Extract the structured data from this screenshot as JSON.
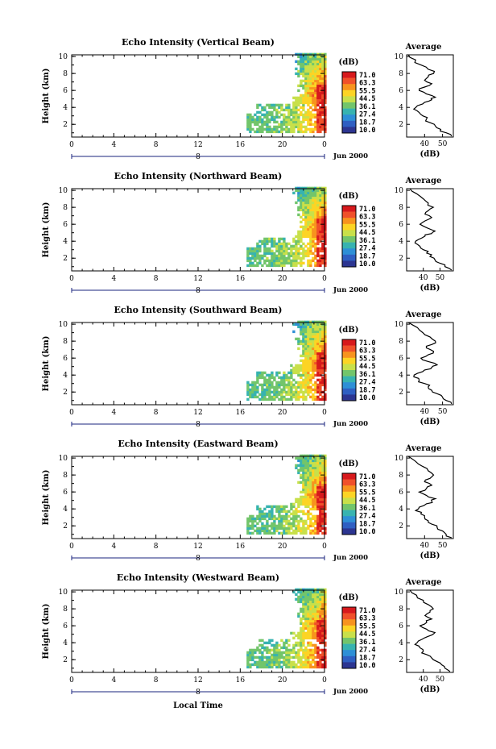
{
  "figure": {
    "xlabel_bottom": "Local Time",
    "date_label": "Jun 2000",
    "day_marker": "8",
    "colorbar_unit": "(dB)",
    "colorbar_ticks": [
      "71.0",
      "63.3",
      "55.5",
      "44.5",
      "36.1",
      "27.4",
      "18.7",
      "10.0"
    ],
    "colorbar_colors": [
      "#d7191c",
      "#f0502a",
      "#f7931e",
      "#fcd424",
      "#c8e04a",
      "#72c56b",
      "#37b3b0",
      "#2e8fd6",
      "#2f5fc2",
      "#2c3591"
    ],
    "avg_title": "Average",
    "avg_xlabel": "(dB)",
    "avg_xticks": [
      "40",
      "50"
    ]
  },
  "chart_data": [
    {
      "type": "heatmap",
      "title": "Echo Intensity (Vertical Beam)",
      "ylabel": "Height (km)",
      "xlim": [
        0,
        24
      ],
      "ylim": [
        0.5,
        10.2
      ],
      "xticks": [
        "0",
        "4",
        "8",
        "12",
        "16",
        "20",
        "0"
      ],
      "yticks": [
        "2",
        "4",
        "6",
        "8",
        "10"
      ],
      "grid": false,
      "note": "echo present roughly from 16.5 h to 24 h local time, strongest (>60 dB) near 23 h below 6 km"
    },
    {
      "type": "heatmap",
      "title": "Echo Intensity (Northward Beam)",
      "ylabel": "Height (km)",
      "xlim": [
        0,
        24
      ],
      "ylim": [
        0.5,
        10.2
      ],
      "xticks": [
        "0",
        "4",
        "8",
        "12",
        "16",
        "20",
        "0"
      ],
      "yticks": [
        "2",
        "4",
        "6",
        "8",
        "10"
      ],
      "grid": false
    },
    {
      "type": "heatmap",
      "title": "Echo Intensity (Southward Beam)",
      "ylabel": "Height (km)",
      "xlim": [
        0,
        24
      ],
      "ylim": [
        0.5,
        10.2
      ],
      "xticks": [
        "0",
        "4",
        "8",
        "12",
        "16",
        "20",
        "0"
      ],
      "yticks": [
        "2",
        "4",
        "6",
        "8",
        "10"
      ],
      "grid": false
    },
    {
      "type": "heatmap",
      "title": "Echo Intensity (Eastward Beam)",
      "ylabel": "Height (km)",
      "xlim": [
        0,
        24
      ],
      "ylim": [
        0.5,
        10.2
      ],
      "xticks": [
        "0",
        "4",
        "8",
        "12",
        "16",
        "20",
        "0"
      ],
      "yticks": [
        "2",
        "4",
        "6",
        "8",
        "10"
      ],
      "grid": false
    },
    {
      "type": "heatmap",
      "title": "Echo Intensity (Westward Beam)",
      "ylabel": "Height (km)",
      "xlim": [
        0,
        24
      ],
      "ylim": [
        0.5,
        10.2
      ],
      "xticks": [
        "0",
        "4",
        "8",
        "12",
        "16",
        "20",
        "0"
      ],
      "yticks": [
        "2",
        "4",
        "6",
        "8",
        "10"
      ],
      "grid": false
    },
    {
      "type": "line",
      "title": "Average",
      "xlabel": "(dB)",
      "xlim": [
        30,
        56
      ],
      "ylim": [
        0.5,
        10.2
      ],
      "series": [
        {
          "height": [
            10.2,
            9.6,
            9.0,
            8.5,
            8.0,
            7.6,
            7.2,
            6.8,
            6.4,
            6.0,
            5.6,
            5.2,
            4.9,
            4.6,
            4.2,
            3.8,
            3.4,
            3.0,
            2.6,
            2.2,
            1.8,
            1.4,
            1.0,
            0.6
          ],
          "dB": [
            31,
            35,
            38,
            42,
            45,
            42,
            40,
            44,
            40,
            37,
            41,
            46,
            44,
            40,
            36,
            34,
            37,
            39,
            41,
            43,
            46,
            49,
            52,
            55
          ]
        }
      ]
    },
    {
      "type": "line",
      "title": "Average",
      "xlabel": "(dB)",
      "xlim": [
        30,
        58
      ],
      "ylim": [
        0.5,
        10.2
      ],
      "series": [
        {
          "height": [
            10.2,
            9.6,
            9.0,
            8.5,
            8.0,
            7.6,
            7.2,
            6.8,
            6.4,
            6.0,
            5.6,
            5.2,
            4.9,
            4.6,
            4.2,
            3.8,
            3.4,
            3.0,
            2.6,
            2.2,
            1.8,
            1.4,
            1.0,
            0.6
          ],
          "dB": [
            32,
            36,
            40,
            43,
            46,
            43,
            41,
            45,
            41,
            38,
            42,
            47,
            45,
            41,
            37,
            35,
            38,
            40,
            42,
            44,
            47,
            50,
            53,
            57
          ]
        }
      ]
    },
    {
      "type": "line",
      "title": "Average",
      "xlabel": "(dB)",
      "xlim": [
        30,
        56
      ],
      "ylim": [
        0.5,
        10.2
      ],
      "series": [
        {
          "height": [
            10.2,
            9.6,
            9.0,
            8.5,
            8.0,
            7.6,
            7.2,
            6.8,
            6.4,
            6.0,
            5.6,
            5.2,
            4.9,
            4.6,
            4.2,
            3.8,
            3.4,
            3.0,
            2.6,
            2.2,
            1.8,
            1.4,
            1.0,
            0.6
          ],
          "dB": [
            31,
            36,
            39,
            43,
            46,
            44,
            41,
            45,
            42,
            38,
            42,
            47,
            44,
            40,
            36,
            34,
            37,
            40,
            42,
            44,
            47,
            50,
            52,
            55
          ]
        }
      ]
    },
    {
      "type": "line",
      "title": "Average",
      "xlabel": "(dB)",
      "xlim": [
        30,
        56
      ],
      "ylim": [
        0.5,
        10.2
      ],
      "series": [
        {
          "height": [
            10.2,
            9.6,
            9.0,
            8.5,
            8.0,
            7.6,
            7.2,
            6.8,
            6.4,
            6.0,
            5.6,
            5.2,
            4.9,
            4.6,
            4.2,
            3.8,
            3.4,
            3.0,
            2.6,
            2.2,
            1.8,
            1.4,
            1.0,
            0.6
          ],
          "dB": [
            31,
            35,
            39,
            42,
            45,
            43,
            40,
            44,
            41,
            37,
            41,
            46,
            44,
            41,
            37,
            35,
            38,
            40,
            42,
            44,
            47,
            50,
            52,
            55
          ]
        }
      ]
    },
    {
      "type": "line",
      "title": "Average",
      "xlabel": "(dB)",
      "xlim": [
        30,
        58
      ],
      "ylim": [
        0.5,
        10.2
      ],
      "series": [
        {
          "height": [
            10.2,
            9.6,
            9.0,
            8.5,
            8.0,
            7.6,
            7.2,
            6.8,
            6.4,
            6.0,
            5.6,
            5.2,
            4.9,
            4.6,
            4.2,
            3.8,
            3.4,
            3.0,
            2.6,
            2.2,
            1.8,
            1.4,
            1.0,
            0.6
          ],
          "dB": [
            32,
            36,
            40,
            43,
            46,
            44,
            41,
            45,
            42,
            38,
            42,
            47,
            45,
            41,
            37,
            35,
            38,
            40,
            42,
            45,
            48,
            51,
            53,
            56
          ]
        }
      ]
    }
  ]
}
